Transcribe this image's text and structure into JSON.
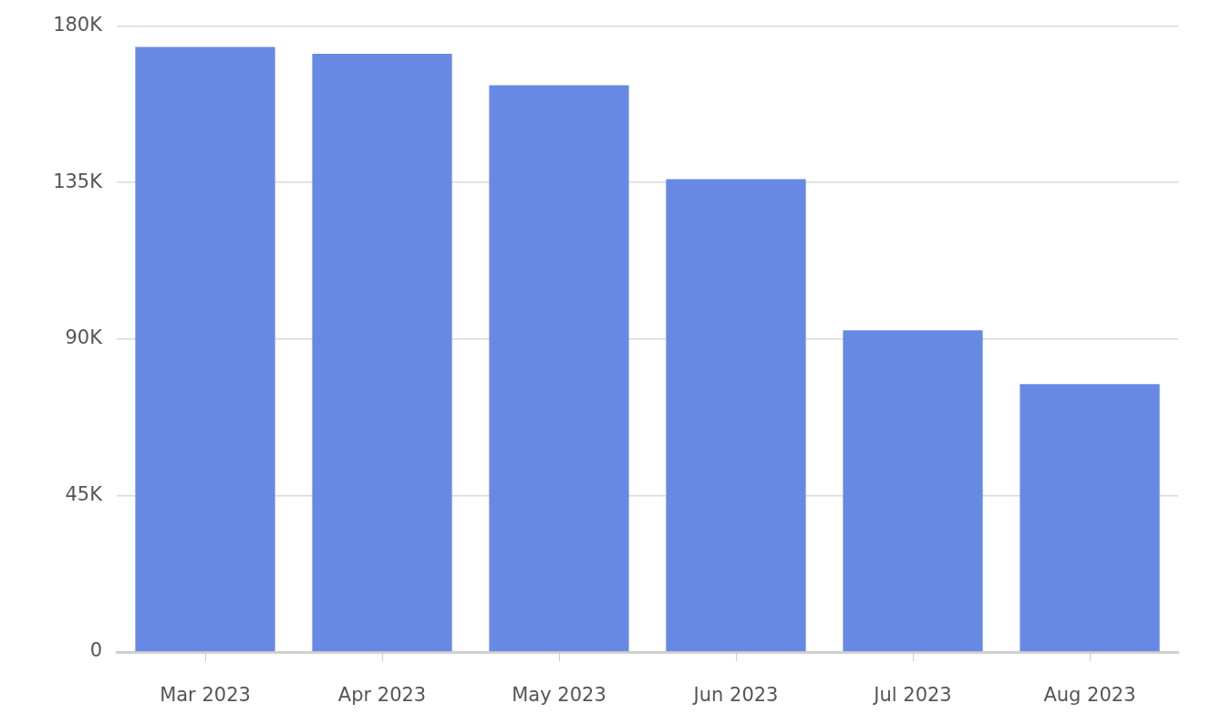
{
  "chart_data": {
    "type": "bar",
    "categories": [
      "Mar 2023",
      "Apr 2023",
      "May 2023",
      "Jun 2023",
      "Jul 2023",
      "Aug 2023"
    ],
    "values": [
      174000,
      172000,
      163000,
      136000,
      92500,
      77000
    ],
    "color": "#6889e3",
    "ylim": [
      0,
      180000
    ],
    "yticks": [
      0,
      {
        "value": 45000,
        "label": "45K"
      },
      {
        "value": 90000,
        "label": "90K"
      },
      {
        "value": 135000,
        "label": "135K"
      },
      {
        "value": 180000,
        "label": "180K"
      }
    ],
    "grid": "y"
  }
}
